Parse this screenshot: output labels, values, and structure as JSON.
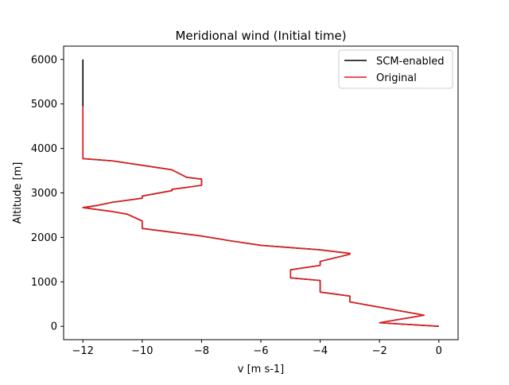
{
  "chart_data": {
    "type": "line",
    "title": "Meridional wind (Initial time)",
    "xlabel": "v [m s-1]",
    "ylabel": "Altitude [m]",
    "xlim": [
      -12.65,
      0.65
    ],
    "ylim": [
      -300,
      6300
    ],
    "xticks": [
      -12,
      -10,
      -8,
      -6,
      -4,
      -2,
      0
    ],
    "yticks": [
      0,
      1000,
      2000,
      3000,
      4000,
      5000,
      6000
    ],
    "grid": false,
    "legend_position": "top-right",
    "series": [
      {
        "name": "SCM-enabled",
        "color": "#000000",
        "points": [
          [
            0,
            0
          ],
          [
            -2,
            80
          ],
          [
            -0.5,
            250
          ],
          [
            -3,
            550
          ],
          [
            -3,
            680
          ],
          [
            -4,
            770
          ],
          [
            -4,
            1030
          ],
          [
            -5,
            1090
          ],
          [
            -5,
            1270
          ],
          [
            -4,
            1370
          ],
          [
            -4,
            1460
          ],
          [
            -3,
            1620
          ],
          [
            -3,
            1640
          ],
          [
            -4,
            1720
          ],
          [
            -6,
            1820
          ],
          [
            -7,
            1920
          ],
          [
            -8,
            2030
          ],
          [
            -10,
            2200
          ],
          [
            -10,
            2370
          ],
          [
            -10.5,
            2520
          ],
          [
            -11,
            2580
          ],
          [
            -12,
            2670
          ],
          [
            -11.5,
            2720
          ],
          [
            -11,
            2790
          ],
          [
            -10,
            2880
          ],
          [
            -10,
            2930
          ],
          [
            -9,
            3050
          ],
          [
            -9,
            3080
          ],
          [
            -8,
            3170
          ],
          [
            -8,
            3310
          ],
          [
            -8.5,
            3350
          ],
          [
            -9,
            3520
          ],
          [
            -10,
            3620
          ],
          [
            -11,
            3720
          ],
          [
            -12,
            3770
          ],
          [
            -12,
            6000
          ]
        ]
      },
      {
        "name": "Original",
        "color": "#e41a1c",
        "points": [
          [
            0,
            0
          ],
          [
            -2,
            80
          ],
          [
            -0.5,
            250
          ],
          [
            -3,
            550
          ],
          [
            -3,
            680
          ],
          [
            -4,
            770
          ],
          [
            -4,
            1030
          ],
          [
            -5,
            1090
          ],
          [
            -5,
            1270
          ],
          [
            -4,
            1370
          ],
          [
            -4,
            1460
          ],
          [
            -3,
            1620
          ],
          [
            -3,
            1640
          ],
          [
            -4,
            1720
          ],
          [
            -6,
            1820
          ],
          [
            -7,
            1920
          ],
          [
            -8,
            2030
          ],
          [
            -10,
            2200
          ],
          [
            -10,
            2370
          ],
          [
            -10.5,
            2520
          ],
          [
            -11,
            2580
          ],
          [
            -12,
            2670
          ],
          [
            -11.5,
            2720
          ],
          [
            -11,
            2790
          ],
          [
            -10,
            2880
          ],
          [
            -10,
            2930
          ],
          [
            -9,
            3050
          ],
          [
            -9,
            3080
          ],
          [
            -8,
            3170
          ],
          [
            -8,
            3310
          ],
          [
            -8.5,
            3350
          ],
          [
            -9,
            3520
          ],
          [
            -10,
            3620
          ],
          [
            -11,
            3720
          ],
          [
            -12,
            3770
          ],
          [
            -12,
            4950
          ]
        ]
      }
    ]
  }
}
